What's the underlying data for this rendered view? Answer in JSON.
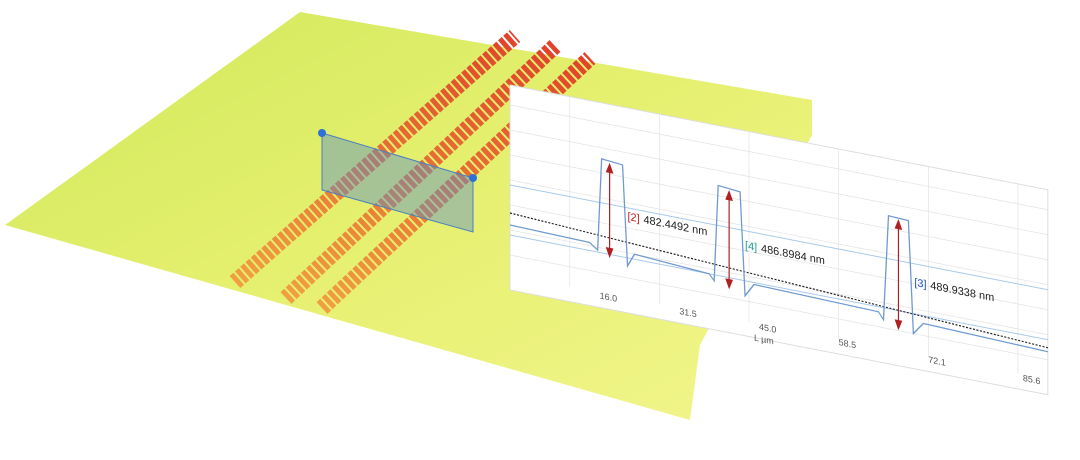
{
  "profile_chart": {
    "x_axis_label": "L µm",
    "x_tick_labels": [
      "16.0",
      "31.5",
      "45.0",
      "58.5",
      "72.1",
      "85.6"
    ],
    "measurements": [
      {
        "index": "[2]",
        "value": "482.4492 nm"
      },
      {
        "index": "[4]",
        "value": "486.8984 nm"
      },
      {
        "index": "[3]",
        "value": "489.9338 nm"
      }
    ]
  }
}
